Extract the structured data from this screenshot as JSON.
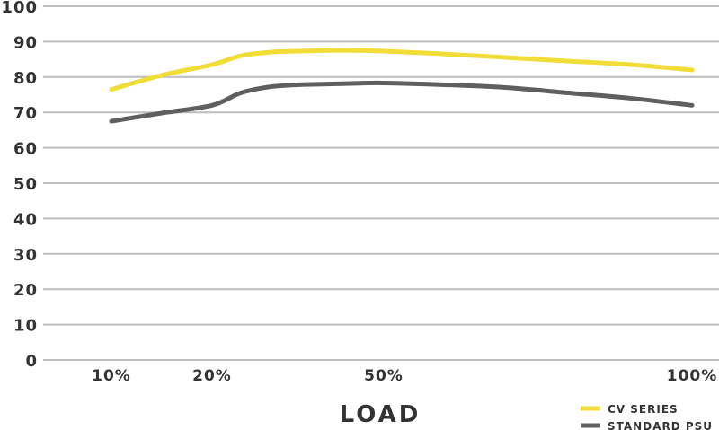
{
  "chart_data": {
    "type": "line",
    "xlabel": "LOAD",
    "ylabel": "",
    "ylim": [
      0,
      100
    ],
    "yticks": [
      0,
      10,
      20,
      30,
      40,
      50,
      60,
      70,
      80,
      90,
      100
    ],
    "grid": true,
    "legend_position": "bottom-right",
    "x_ticks": [
      {
        "value": 10,
        "label": "10%"
      },
      {
        "value": 20,
        "label": "20%"
      },
      {
        "value": 50,
        "label": "50%"
      },
      {
        "value": 100,
        "label": "100%"
      }
    ],
    "xlim": [
      0,
      100
    ],
    "series": [
      {
        "name": "CV SERIES",
        "color": "#f2dc37",
        "x": [
          10,
          15,
          20,
          25,
          30,
          35,
          40,
          45,
          50,
          60,
          70,
          80,
          90,
          100
        ],
        "values": [
          76.5,
          80.5,
          83.5,
          86.0,
          87.0,
          87.3,
          87.5,
          87.5,
          87.3,
          86.5,
          85.5,
          84.5,
          83.5,
          82.0
        ]
      },
      {
        "name": "STANDARD PSU",
        "color": "#5f5f5f",
        "x": [
          10,
          15,
          20,
          25,
          30,
          35,
          40,
          45,
          50,
          60,
          70,
          80,
          90,
          100
        ],
        "values": [
          67.5,
          69.8,
          72.0,
          75.5,
          77.2,
          77.8,
          78.0,
          78.2,
          78.3,
          77.8,
          77.0,
          75.5,
          74.0,
          72.0
        ]
      }
    ]
  }
}
